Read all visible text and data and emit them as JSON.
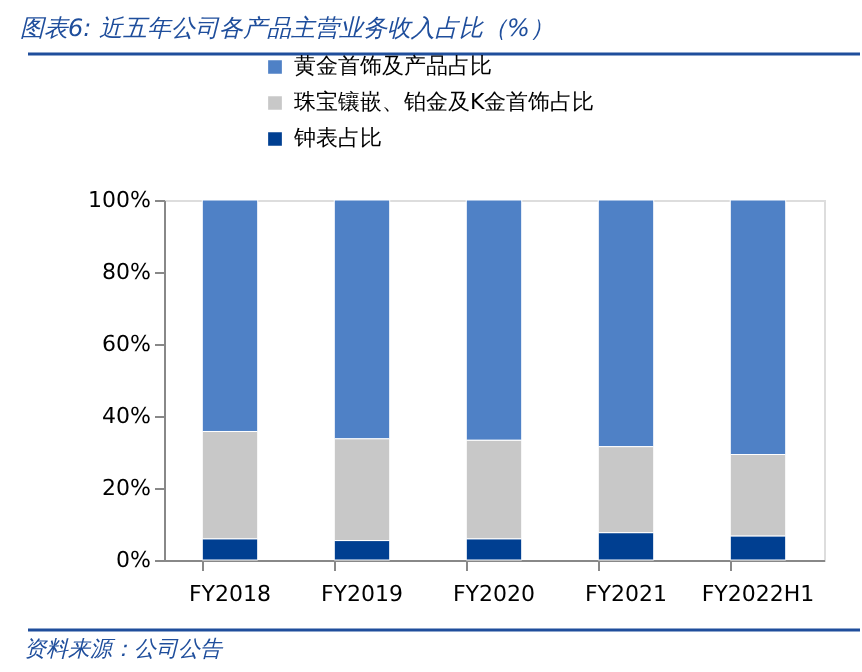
{
  "chart_data": {
    "type": "bar",
    "title": "图表6: 近五年公司各产品主营业务收入占比（%）",
    "categories": [
      "FY2018",
      "FY2019",
      "FY2020",
      "FY2021",
      "FY2022H1"
    ],
    "stacked": true,
    "series": [
      {
        "name": "钟表占比",
        "color": "#003f91",
        "values": [
          5.9,
          5.4,
          5.9,
          7.6,
          6.7
        ]
      },
      {
        "name": "珠宝镶嵌、铂金及K金首饰占比",
        "color": "#c8c8c8",
        "values": [
          29.8,
          28.3,
          27.4,
          23.9,
          22.6
        ]
      },
      {
        "name": "黄金首饰及产品占比",
        "color": "#4f81c6",
        "values": [
          64.3,
          66.3,
          66.7,
          68.5,
          70.7
        ]
      }
    ],
    "ylim": [
      0,
      100
    ],
    "yticks": [
      {
        "value": 0,
        "label": "0%"
      },
      {
        "value": 20,
        "label": "20%"
      },
      {
        "value": 40,
        "label": "40%"
      },
      {
        "value": 60,
        "label": "60%"
      },
      {
        "value": 80,
        "label": "80%"
      },
      {
        "value": 100,
        "label": "100%"
      }
    ],
    "grid": false,
    "legend": "top",
    "annotations": [
      "资料来源：公司公告"
    ]
  }
}
